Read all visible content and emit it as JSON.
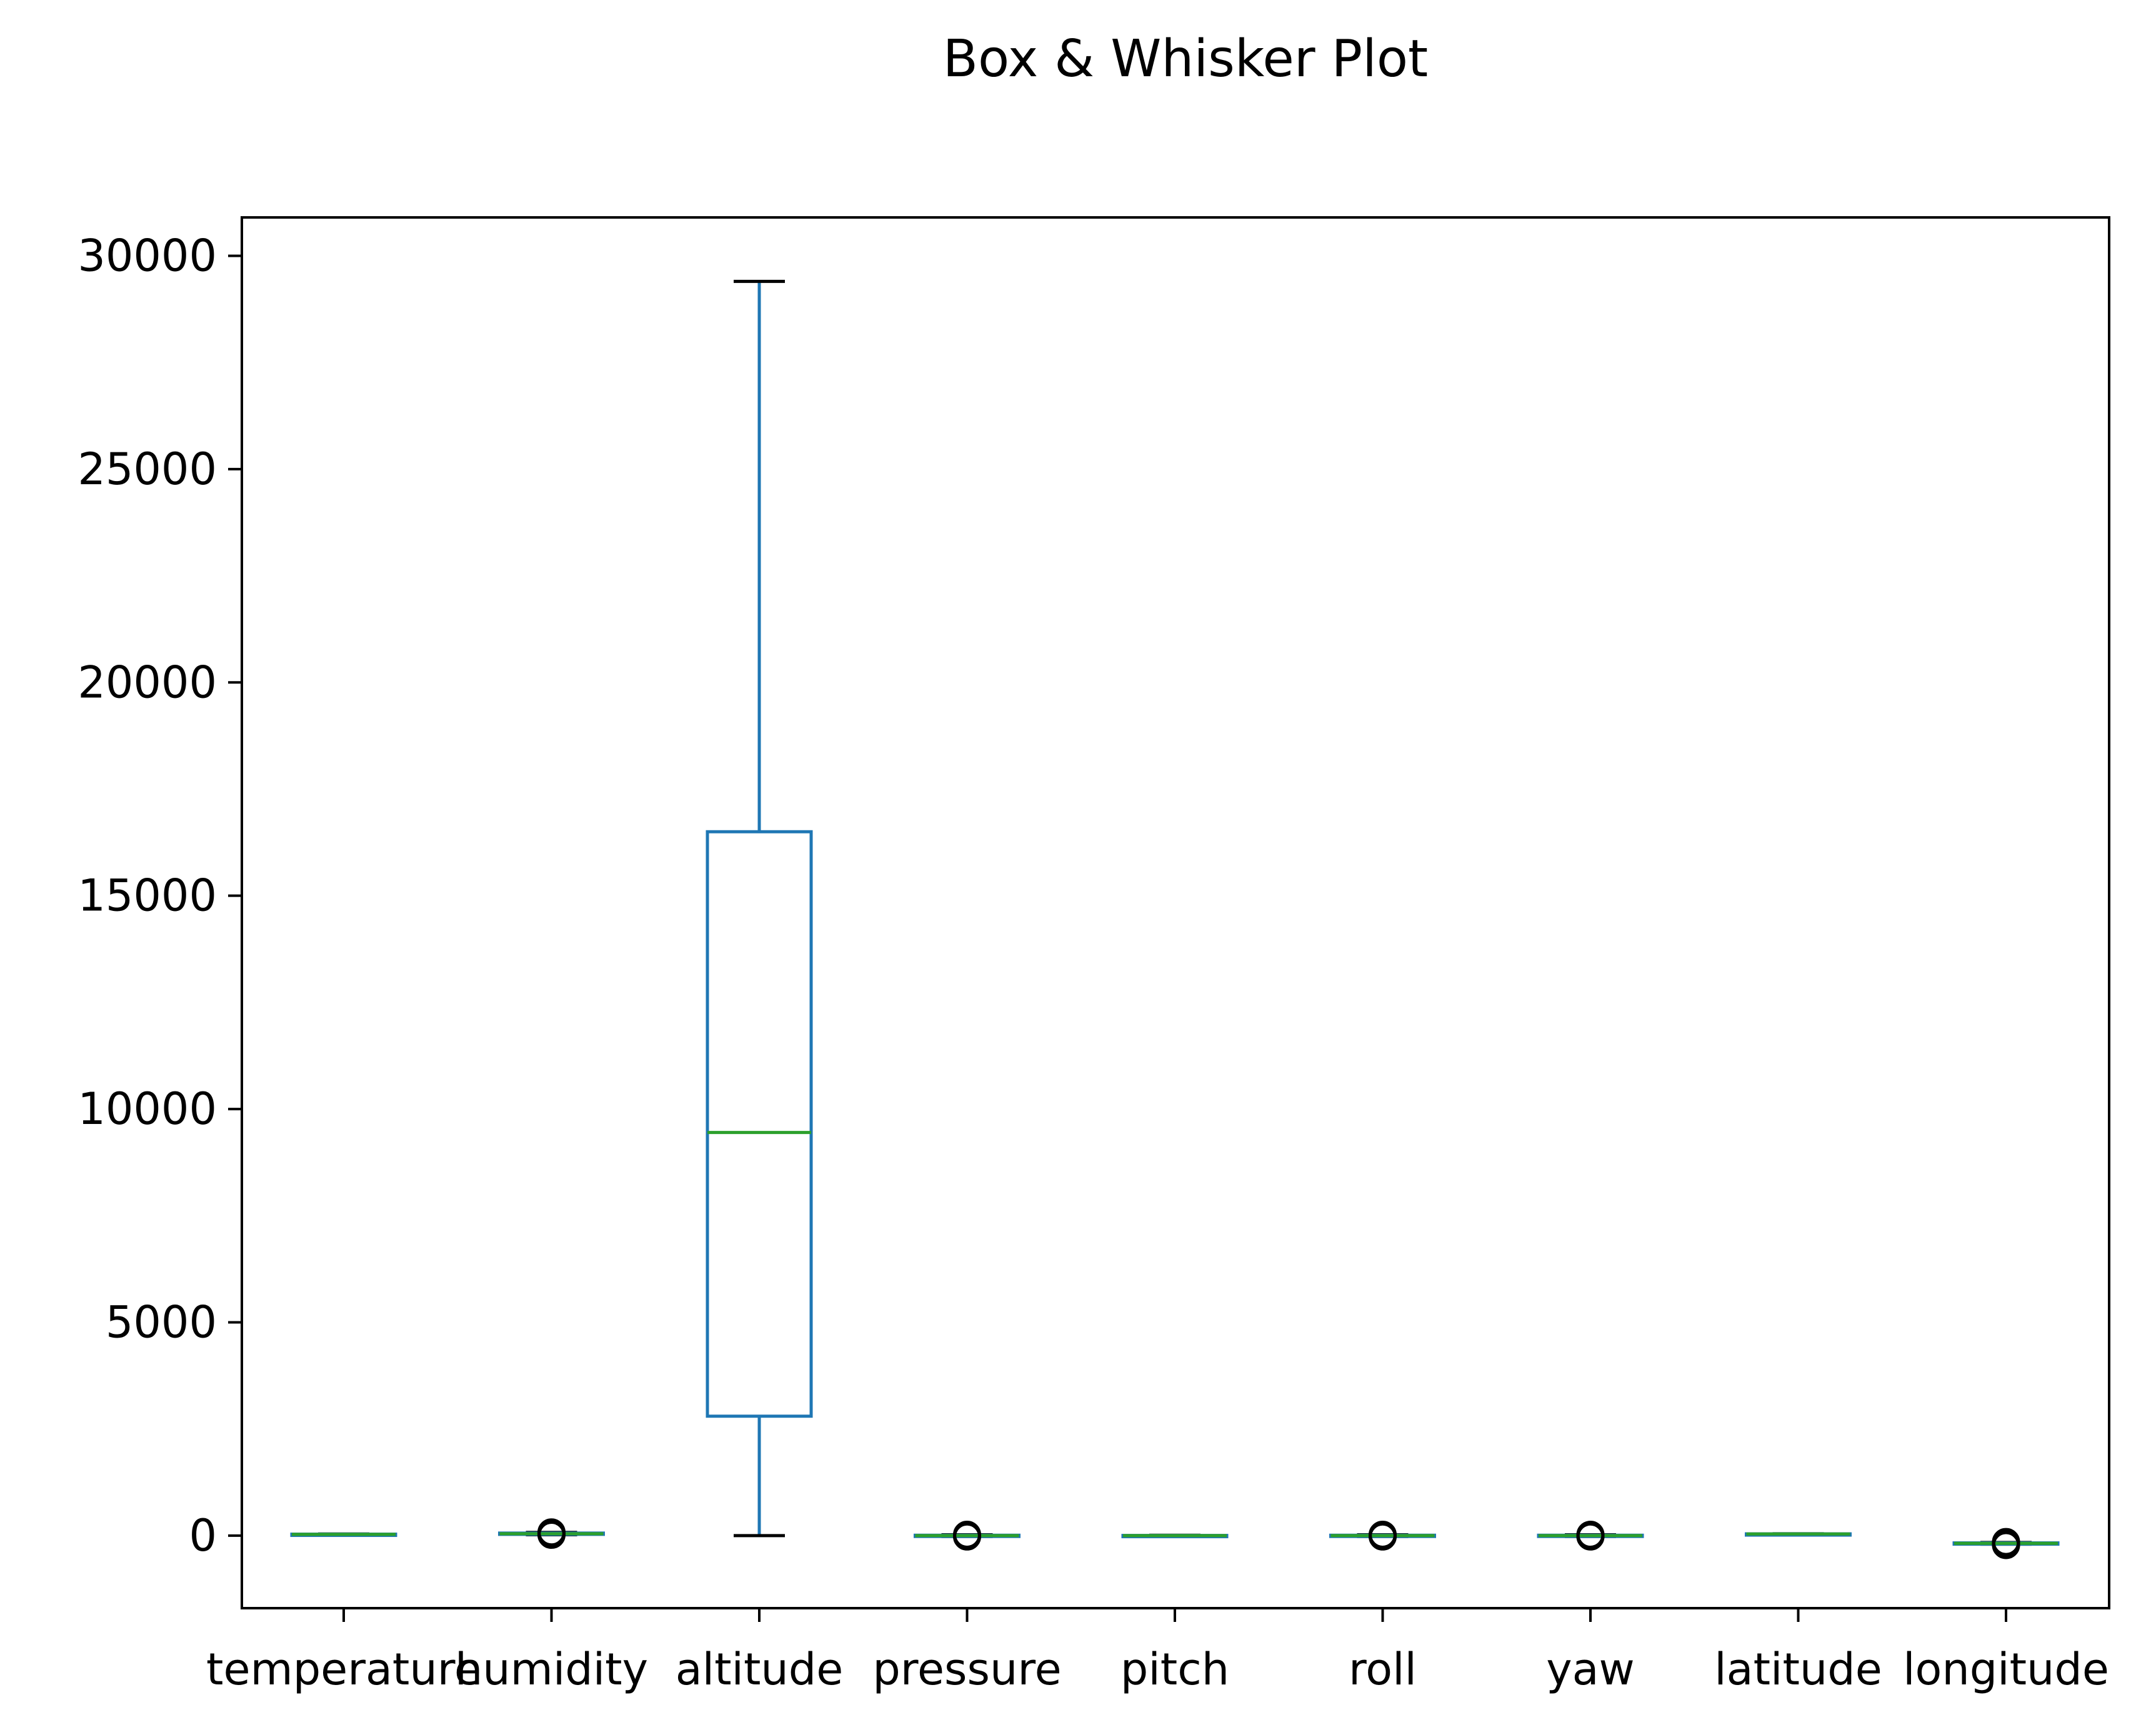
{
  "chart_data": {
    "type": "box",
    "title": "Box & Whisker Plot",
    "xlabel": "",
    "ylabel": "",
    "ylim": [
      -1700,
      30900
    ],
    "yticks": [
      0,
      5000,
      10000,
      15000,
      20000,
      25000,
      30000
    ],
    "grid": false,
    "categories": [
      "temperature",
      "humidity",
      "altitude",
      "pressure",
      "pitch",
      "roll",
      "yaw",
      "latitude",
      "longitude"
    ],
    "boxes": [
      {
        "name": "temperature",
        "whisker_low": 20,
        "q1": 25,
        "median": 30,
        "q3": 35,
        "whisker_high": 40,
        "outliers": []
      },
      {
        "name": "humidity",
        "whisker_low": 20,
        "q1": 30,
        "median": 45,
        "q3": 60,
        "whisker_high": 75,
        "outliers": [
          20,
          45,
          75
        ]
      },
      {
        "name": "altitude",
        "whisker_low": 0,
        "q1": 2800,
        "median": 9450,
        "q3": 16500,
        "whisker_high": 29400,
        "outliers": []
      },
      {
        "name": "pressure",
        "whisker_low": -20,
        "q1": -10,
        "median": 0,
        "q3": 10,
        "whisker_high": 20,
        "outliers": [
          -20,
          0,
          20
        ]
      },
      {
        "name": "pitch",
        "whisker_low": -10,
        "q1": -5,
        "median": 0,
        "q3": 5,
        "whisker_high": 10,
        "outliers": []
      },
      {
        "name": "roll",
        "whisker_low": -20,
        "q1": -10,
        "median": 0,
        "q3": 10,
        "whisker_high": 20,
        "outliers": [
          -20,
          0,
          20
        ]
      },
      {
        "name": "yaw",
        "whisker_low": -20,
        "q1": -10,
        "median": 0,
        "q3": 10,
        "whisker_high": 20,
        "outliers": [
          -20,
          0,
          20
        ]
      },
      {
        "name": "latitude",
        "whisker_low": 35,
        "q1": 38,
        "median": 40,
        "q3": 42,
        "whisker_high": 45,
        "outliers": []
      },
      {
        "name": "longitude",
        "whisker_low": -200,
        "q1": -190,
        "median": -180,
        "q3": -170,
        "whisker_high": -160,
        "outliers": [
          -220,
          -180,
          -150
        ]
      }
    ],
    "colors": {
      "box": "#1f77b4",
      "median": "#2ca02c",
      "cap": "#000000",
      "outlier": "#000000",
      "axes": "#000000"
    }
  }
}
